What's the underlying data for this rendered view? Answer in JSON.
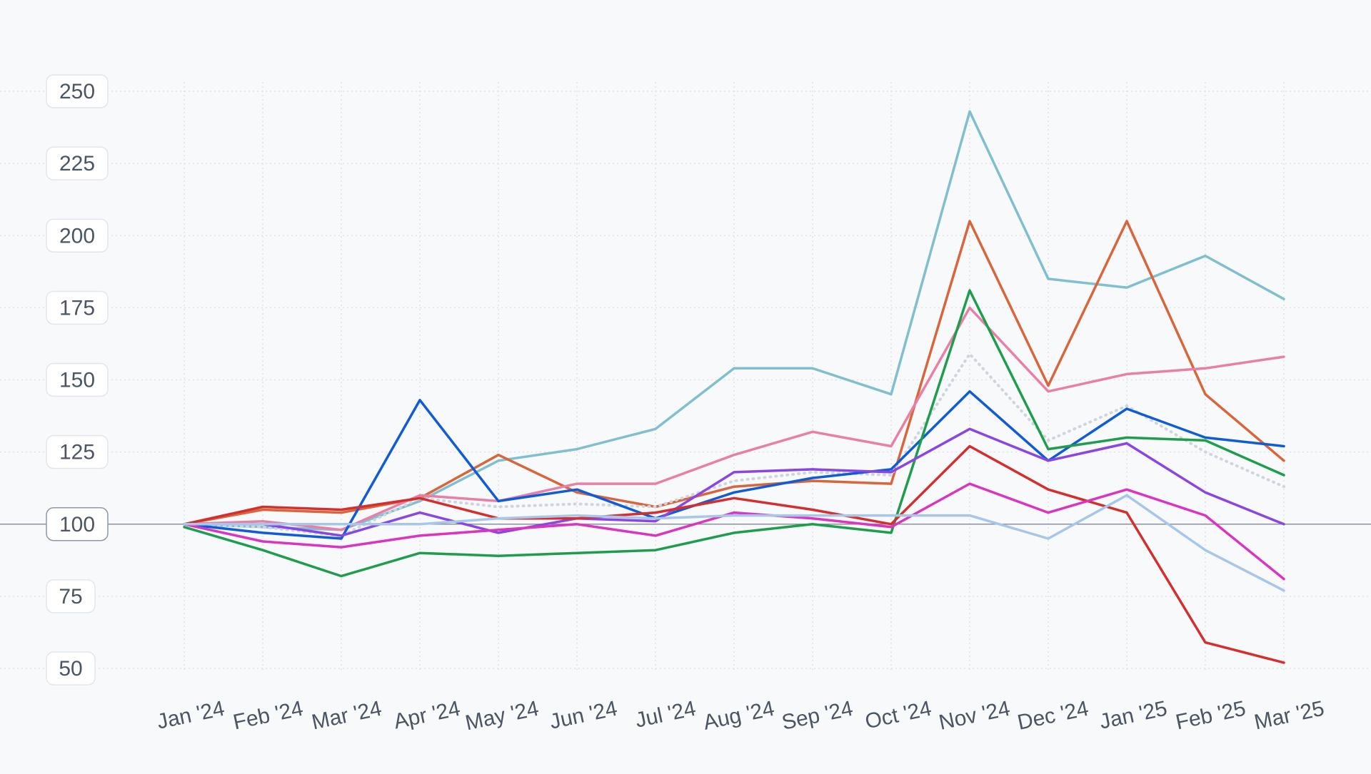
{
  "chart_data": {
    "type": "line",
    "title": "",
    "xlabel": "",
    "ylabel": "",
    "ylim": [
      45,
      265
    ],
    "y_ticks": [
      50,
      75,
      100,
      125,
      150,
      175,
      200,
      225,
      250
    ],
    "baseline": 100,
    "grid": true,
    "legend": "none",
    "categories": [
      "Jan '24",
      "Feb '24",
      "Mar '24",
      "Apr '24",
      "May '24",
      "Jun '24",
      "Jul '24",
      "Aug '24",
      "Sep '24",
      "Oct '24",
      "Nov '24",
      "Dec '24",
      "Jan '25",
      "Feb '25",
      "Mar '25"
    ],
    "series": [
      {
        "color": "#7fbfcf",
        "style": "solid",
        "values": [
          100,
          99,
          98,
          108,
          122,
          126,
          133,
          154,
          154,
          145,
          243,
          185,
          182,
          193,
          178
        ]
      },
      {
        "color": "#d9653b",
        "style": "solid",
        "values": [
          100,
          105,
          104,
          109,
          124,
          111,
          106,
          113,
          115,
          114,
          205,
          148,
          205,
          145,
          122
        ]
      },
      {
        "color": "#e97fa6",
        "style": "solid",
        "values": [
          100,
          101,
          98,
          110,
          108,
          114,
          114,
          124,
          132,
          127,
          175,
          146,
          152,
          154,
          158
        ]
      },
      {
        "color": "#cfd5de",
        "style": "dotted",
        "values": [
          100,
          99,
          96,
          109,
          106,
          107,
          106,
          115,
          118,
          117,
          159,
          129,
          141,
          125,
          113
        ]
      },
      {
        "color": "#0f5bd8",
        "style": "solid",
        "values": [
          100,
          97,
          95,
          143,
          108,
          112,
          102,
          111,
          116,
          119,
          146,
          122,
          140,
          130,
          127
        ]
      },
      {
        "color": "#1e9e4d",
        "style": "solid",
        "values": [
          99,
          91,
          82,
          90,
          89,
          90,
          91,
          97,
          100,
          97,
          181,
          126,
          130,
          129,
          117
        ]
      },
      {
        "color": "#8a46e2",
        "style": "solid",
        "values": [
          100,
          100,
          96,
          104,
          97,
          102,
          101,
          118,
          119,
          118,
          133,
          122,
          128,
          111,
          100
        ]
      },
      {
        "color": "#d42e2e",
        "style": "solid",
        "values": [
          100,
          106,
          105,
          109,
          102,
          102,
          104,
          109,
          105,
          100,
          127,
          112,
          104,
          59,
          52
        ]
      },
      {
        "color": "#d935c0",
        "style": "solid",
        "values": [
          100,
          94,
          92,
          96,
          98,
          100,
          96,
          104,
          102,
          99,
          114,
          104,
          112,
          103,
          81
        ]
      },
      {
        "color": "#a7c7ea",
        "style": "solid",
        "values": [
          100,
          100,
          100,
          100,
          102,
          103,
          102,
          103,
          103,
          103,
          103,
          95,
          110,
          91,
          77
        ]
      }
    ]
  }
}
